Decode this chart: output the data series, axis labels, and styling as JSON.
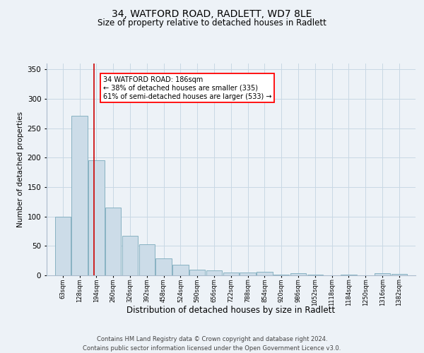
{
  "title": "34, WATFORD ROAD, RADLETT, WD7 8LE",
  "subtitle": "Size of property relative to detached houses in Radlett",
  "xlabel": "Distribution of detached houses by size in Radlett",
  "ylabel": "Number of detached properties",
  "footer_line1": "Contains HM Land Registry data © Crown copyright and database right 2024.",
  "footer_line2": "Contains public sector information licensed under the Open Government Licence v3.0.",
  "annotation_line1": "34 WATFORD ROAD: 186sqm",
  "annotation_line2": "← 38% of detached houses are smaller (335)",
  "annotation_line3": "61% of semi-detached houses are larger (533) →",
  "bar_color": "#ccdce8",
  "bar_edge_color": "#7aaabb",
  "grid_color": "#c8d8e4",
  "bg_color": "#edf2f7",
  "redline_color": "#cc0000",
  "redline_x": 186,
  "categories": [
    63,
    128,
    194,
    260,
    326,
    392,
    458,
    524,
    590,
    656,
    722,
    788,
    854,
    920,
    986,
    1052,
    1118,
    1184,
    1250,
    1316,
    1382
  ],
  "values": [
    100,
    271,
    196,
    115,
    67,
    53,
    29,
    18,
    10,
    8,
    5,
    5,
    6,
    1,
    4,
    1,
    0,
    1,
    0,
    4,
    2
  ],
  "ylim": [
    0,
    360
  ],
  "yticks": [
    0,
    50,
    100,
    150,
    200,
    250,
    300,
    350
  ],
  "bin_width": 64,
  "title_fontsize": 10,
  "subtitle_fontsize": 8.5,
  "xlabel_fontsize": 8.5,
  "ylabel_fontsize": 7.5,
  "xtick_fontsize": 6,
  "ytick_fontsize": 7.5,
  "footer_fontsize": 6,
  "annot_fontsize": 7
}
